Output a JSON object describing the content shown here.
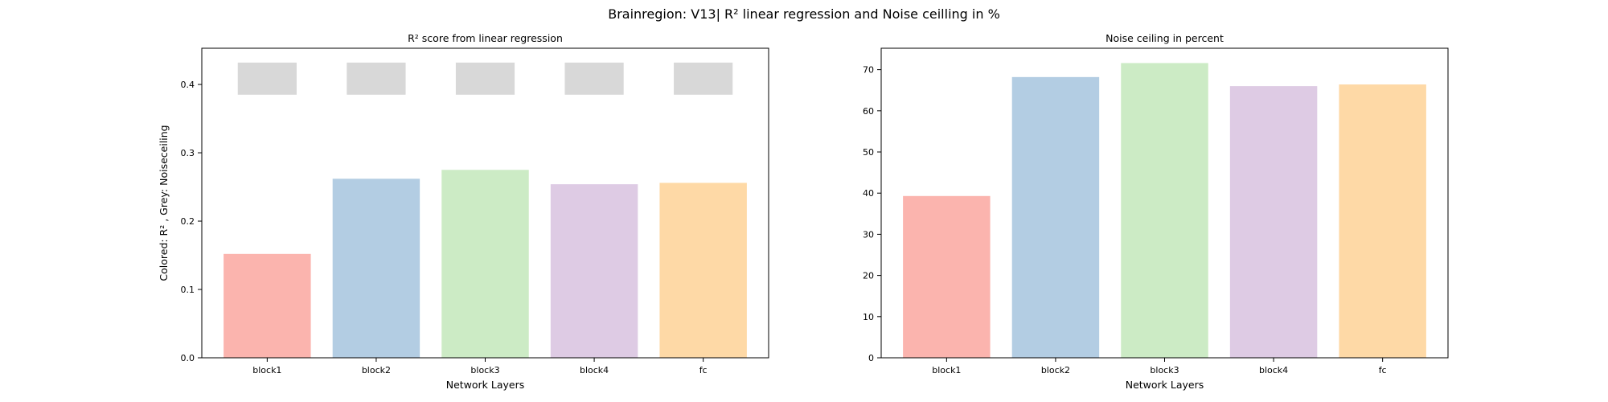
{
  "figure": {
    "title": "Brainregion: V13| R² linear regression and Noise ceilling in %"
  },
  "colors": {
    "bars": [
      "#fbb4ae",
      "#b3cde3",
      "#ccebc5",
      "#decbe4",
      "#fed9a6"
    ],
    "noise_ceiling": "#d8d8d8"
  },
  "chart_data": [
    {
      "type": "bar",
      "title": "R² score from linear regression",
      "xlabel": "Network Layers",
      "ylabel": "Colored: R² , Grey: Noiseceiling",
      "categories": [
        "block1",
        "block2",
        "block3",
        "block4",
        "fc"
      ],
      "series": [
        {
          "values": [
            0.152,
            0.262,
            0.275,
            0.254,
            0.256
          ]
        }
      ],
      "noise_ceiling_ranges": [
        [
          0.385,
          0.432
        ],
        [
          0.385,
          0.432
        ],
        [
          0.385,
          0.432
        ],
        [
          0.385,
          0.432
        ],
        [
          0.385,
          0.432
        ]
      ],
      "ylim": [
        0,
        0.453
      ],
      "yticks": [
        0.0,
        0.1,
        0.2,
        0.3,
        0.4
      ],
      "ytick_labels": [
        "0.0",
        "0.1",
        "0.2",
        "0.3",
        "0.4"
      ],
      "grid": false,
      "legend": "none"
    },
    {
      "type": "bar",
      "title": "Noise ceiling in percent",
      "xlabel": "Network Layers",
      "ylabel": "",
      "categories": [
        "block1",
        "block2",
        "block3",
        "block4",
        "fc"
      ],
      "series": [
        {
          "values": [
            39.3,
            68.2,
            71.6,
            66.0,
            66.4
          ]
        }
      ],
      "ylim": [
        0,
        75.2
      ],
      "yticks": [
        0,
        10,
        20,
        30,
        40,
        50,
        60,
        70
      ],
      "ytick_labels": [
        "0",
        "10",
        "20",
        "30",
        "40",
        "50",
        "60",
        "70"
      ],
      "grid": false,
      "legend": "none"
    }
  ]
}
